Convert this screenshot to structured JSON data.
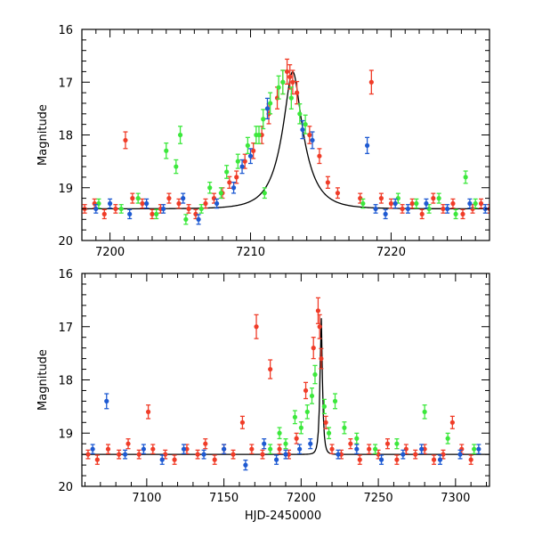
{
  "figure": {
    "xlabel": "HJD-2450000"
  },
  "colors": {
    "red": "#f03c28",
    "green": "#3ce83c",
    "blue": "#1e5ad2",
    "model": "#000000"
  },
  "chart_data": [
    {
      "type": "scatter",
      "panel": "top",
      "title": "",
      "xlabel": "",
      "ylabel": "Magnitude",
      "xlim": [
        7198,
        7227
      ],
      "ylim": [
        20,
        16
      ],
      "xticks": [
        7200,
        7210,
        7220
      ],
      "yticks": [
        16,
        17,
        18,
        19,
        20
      ],
      "tick_labels_x": [
        "7200",
        "7210",
        "7220"
      ],
      "tick_labels_y": [
        "16",
        "17",
        "18",
        "19",
        "20"
      ],
      "series": [
        {
          "name": "red",
          "x": [
            7198.2,
            7198.9,
            7199.6,
            7200.4,
            7201.1,
            7201.6,
            7202.3,
            7203.0,
            7203.6,
            7204.2,
            7204.9,
            7205.6,
            7206.1,
            7206.8,
            7207.4,
            7208.0,
            7208.5,
            7209.0,
            7209.6,
            7210.2,
            7210.8,
            7211.3,
            7211.9,
            7212.3,
            7212.6,
            7212.8,
            7213.0,
            7213.3,
            7214.2,
            7214.9,
            7215.5,
            7216.2,
            7217.8,
            7218.6,
            7219.3,
            7220.0,
            7220.8,
            7221.5,
            7222.2,
            7223.0,
            7223.7,
            7224.4,
            7225.1,
            7225.8,
            7226.4,
            7227.0
          ],
          "y": [
            19.4,
            19.3,
            19.5,
            19.4,
            18.1,
            19.2,
            19.3,
            19.5,
            19.4,
            19.2,
            19.3,
            19.4,
            19.5,
            19.3,
            19.2,
            19.1,
            18.9,
            18.8,
            18.5,
            18.3,
            18.0,
            17.6,
            17.3,
            17.0,
            16.8,
            16.9,
            17.0,
            17.2,
            18.0,
            18.4,
            18.9,
            19.1,
            19.2,
            17.0,
            19.2,
            19.3,
            19.4,
            19.3,
            19.5,
            19.2,
            19.4,
            19.3,
            19.5,
            19.4,
            19.3,
            19.4
          ]
        },
        {
          "name": "green",
          "x": [
            7199.2,
            7200.8,
            7202.0,
            7203.3,
            7204.0,
            7204.7,
            7205.0,
            7205.4,
            7206.5,
            7207.1,
            7207.9,
            7208.3,
            7209.1,
            7209.8,
            7210.4,
            7210.9,
            7211.4,
            7212.0,
            7212.3,
            7212.9,
            7213.5,
            7213.9,
            7211.0,
            7210.6,
            7218.0,
            7220.5,
            7221.8,
            7222.7,
            7223.4,
            7224.6,
            7225.3,
            7226.0
          ],
          "y": [
            19.3,
            19.4,
            19.2,
            19.5,
            18.3,
            18.6,
            18.0,
            19.6,
            19.4,
            19.0,
            19.1,
            18.7,
            18.5,
            18.2,
            18.0,
            17.7,
            17.4,
            17.1,
            17.0,
            17.3,
            17.6,
            17.8,
            19.1,
            18.0,
            19.3,
            19.2,
            19.3,
            19.4,
            19.2,
            19.5,
            18.8,
            19.3
          ]
        },
        {
          "name": "blue",
          "x": [
            7199.0,
            7200.0,
            7201.4,
            7202.6,
            7203.8,
            7205.2,
            7206.3,
            7207.6,
            7208.8,
            7209.4,
            7210.0,
            7211.2,
            7213.7,
            7214.4,
            7218.3,
            7218.9,
            7219.6,
            7220.3,
            7221.2,
            7222.5,
            7224.0,
            7225.6,
            7226.7
          ],
          "y": [
            19.4,
            19.3,
            19.5,
            19.3,
            19.4,
            19.2,
            19.6,
            19.3,
            19.0,
            18.6,
            18.4,
            17.5,
            17.9,
            18.1,
            18.2,
            19.4,
            19.5,
            19.3,
            19.4,
            19.3,
            19.4,
            19.3,
            19.4
          ]
        }
      ],
      "model_curve": {
        "baseline": 19.4,
        "peak": 16.8,
        "t0": 7213.0
      }
    },
    {
      "type": "scatter",
      "panel": "bottom",
      "title": "",
      "xlabel": "HJD-2450000",
      "ylabel": "Magnitude",
      "xlim": [
        7058,
        7322
      ],
      "ylim": [
        20,
        16
      ],
      "xticks": [
        7100,
        7150,
        7200,
        7250,
        7300
      ],
      "yticks": [
        16,
        17,
        18,
        19,
        20
      ],
      "tick_labels_x": [
        "7100",
        "7150",
        "7200",
        "7250",
        "7300"
      ],
      "tick_labels_y": [
        "16",
        "17",
        "18",
        "19",
        "20"
      ],
      "series": [
        {
          "name": "red",
          "x": [
            7062,
            7068,
            7075,
            7082,
            7088,
            7095,
            7101,
            7104,
            7112,
            7118,
            7126,
            7133,
            7138,
            7144,
            7150,
            7156,
            7162,
            7168,
            7171,
            7175,
            7180,
            7186,
            7192,
            7197,
            7203,
            7208,
            7211,
            7212,
            7213,
            7216,
            7220,
            7226,
            7232,
            7238,
            7244,
            7250,
            7256,
            7262,
            7268,
            7274,
            7280,
            7286,
            7292,
            7298,
            7304,
            7310
          ],
          "y": [
            19.4,
            19.5,
            19.3,
            19.4,
            19.2,
            19.4,
            18.6,
            19.3,
            19.4,
            19.5,
            19.3,
            19.4,
            19.2,
            19.5,
            19.3,
            19.4,
            18.8,
            19.3,
            17.0,
            19.4,
            17.8,
            19.3,
            19.4,
            19.1,
            18.2,
            17.4,
            16.7,
            17.0,
            17.6,
            18.8,
            19.3,
            19.4,
            19.2,
            19.5,
            19.3,
            19.4,
            19.2,
            19.5,
            19.3,
            19.4,
            19.3,
            19.5,
            19.4,
            18.8,
            19.3,
            19.5
          ]
        },
        {
          "name": "green",
          "x": [
            7180,
            7186,
            7190,
            7196,
            7200,
            7204,
            7207,
            7209,
            7215,
            7218,
            7222,
            7228,
            7236,
            7248,
            7262,
            7280,
            7295,
            7312
          ],
          "y": [
            19.3,
            19.0,
            19.2,
            18.7,
            18.9,
            18.6,
            18.3,
            17.9,
            18.5,
            19.0,
            18.4,
            18.9,
            19.1,
            19.3,
            19.2,
            18.6,
            19.1,
            19.3
          ]
        },
        {
          "name": "blue",
          "x": [
            7065,
            7074,
            7086,
            7098,
            7110,
            7124,
            7137,
            7150,
            7164,
            7176,
            7184,
            7190,
            7199,
            7206,
            7224,
            7236,
            7252,
            7266,
            7278,
            7290,
            7303,
            7315
          ],
          "y": [
            19.3,
            18.4,
            19.4,
            19.3,
            19.5,
            19.3,
            19.4,
            19.3,
            19.6,
            19.2,
            19.5,
            19.4,
            19.3,
            19.2,
            19.4,
            19.3,
            19.5,
            19.4,
            19.3,
            19.5,
            19.4,
            19.3
          ]
        }
      ],
      "model_curve": {
        "baseline": 19.4,
        "peak": 16.8,
        "t0": 7213.0
      }
    }
  ]
}
